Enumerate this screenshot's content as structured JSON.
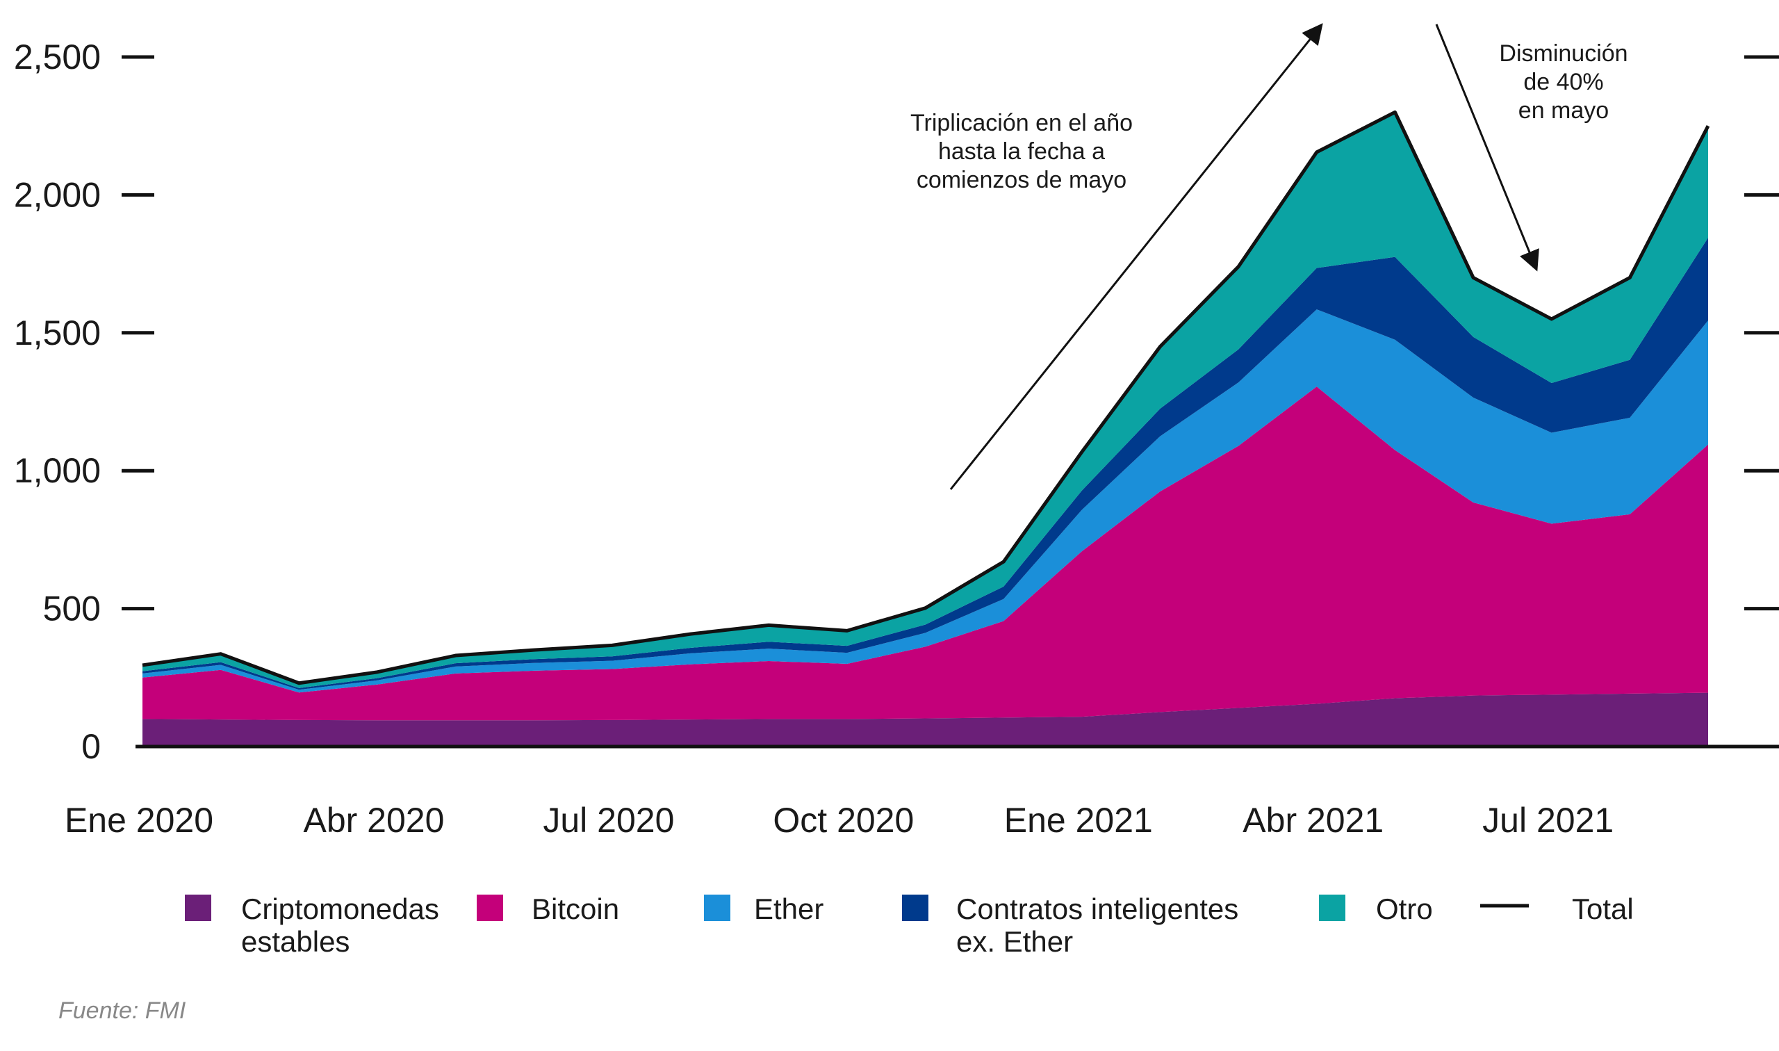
{
  "chart_data": {
    "type": "area",
    "stacked": true,
    "x_tick_labels": [
      "Ene 2020",
      "Abr 2020",
      "Jul 2020",
      "Oct 2020",
      "Ene 2021",
      "Abr 2021",
      "Jul 2021"
    ],
    "x_dates": [
      "2020-01",
      "2020-02",
      "2020-03",
      "2020-04",
      "2020-05",
      "2020-06",
      "2020-07",
      "2020-08",
      "2020-09",
      "2020-10",
      "2020-11",
      "2020-12",
      "2021-01",
      "2021-02",
      "2021-03",
      "2021-04",
      "2021-05",
      "2021-06",
      "2021-07",
      "2021-08",
      "2021-09"
    ],
    "y_tick_labels": [
      "0",
      "500",
      "1,000",
      "1,500",
      "2,000",
      "2,500"
    ],
    "ylim": [
      0,
      2600
    ],
    "series": [
      {
        "name": "Criptomonedas estables",
        "color": "#6b1f78",
        "values": [
          100,
          98,
          96,
          95,
          95,
          95,
          96,
          98,
          100,
          100,
          102,
          105,
          108,
          125,
          140,
          155,
          175,
          185,
          188,
          192,
          195
        ]
      },
      {
        "name": "Bitcoin",
        "color": "#c4007a",
        "values": [
          150,
          180,
          100,
          130,
          170,
          180,
          185,
          200,
          210,
          200,
          260,
          350,
          600,
          800,
          950,
          1150,
          900,
          700,
          620,
          650,
          900
        ]
      },
      {
        "name": "Ether",
        "color": "#1b8fd9",
        "values": [
          15,
          18,
          10,
          15,
          25,
          28,
          30,
          40,
          45,
          40,
          50,
          80,
          150,
          200,
          230,
          280,
          400,
          380,
          330,
          350,
          450
        ]
      },
      {
        "name": "Contratos inteligentes ex. Ether",
        "color": "#003a8c",
        "values": [
          8,
          10,
          6,
          8,
          12,
          14,
          16,
          20,
          25,
          25,
          30,
          45,
          70,
          100,
          120,
          150,
          300,
          220,
          180,
          210,
          300
        ]
      },
      {
        "name": "Otro",
        "color": "#0ba3a3",
        "values": [
          22,
          30,
          18,
          22,
          28,
          33,
          40,
          50,
          60,
          55,
          60,
          90,
          140,
          225,
          300,
          420,
          525,
          215,
          232,
          298,
          405
        ]
      }
    ],
    "total": {
      "name": "Total",
      "color": "#111111",
      "values": [
        295,
        336,
        230,
        270,
        330,
        350,
        367,
        408,
        440,
        420,
        502,
        670,
        1068,
        1450,
        1740,
        2155,
        2300,
        1700,
        1550,
        1700,
        2250
      ]
    },
    "legend": [
      "Criptomonedas estables",
      "Bitcoin",
      "Ether",
      "Contratos inteligentes ex. Ether",
      "Otro",
      "Total"
    ],
    "legend_placement": "bottom",
    "annotations": [
      {
        "id": "triple",
        "lines": [
          "Triplicación en el año",
          "hasta la fecha a",
          "comienzos de mayo"
        ]
      },
      {
        "id": "drop",
        "lines": [
          "Disminución",
          "de 40%",
          "en mayo"
        ]
      }
    ],
    "source": "Fuente: FMI",
    "grid": false
  }
}
